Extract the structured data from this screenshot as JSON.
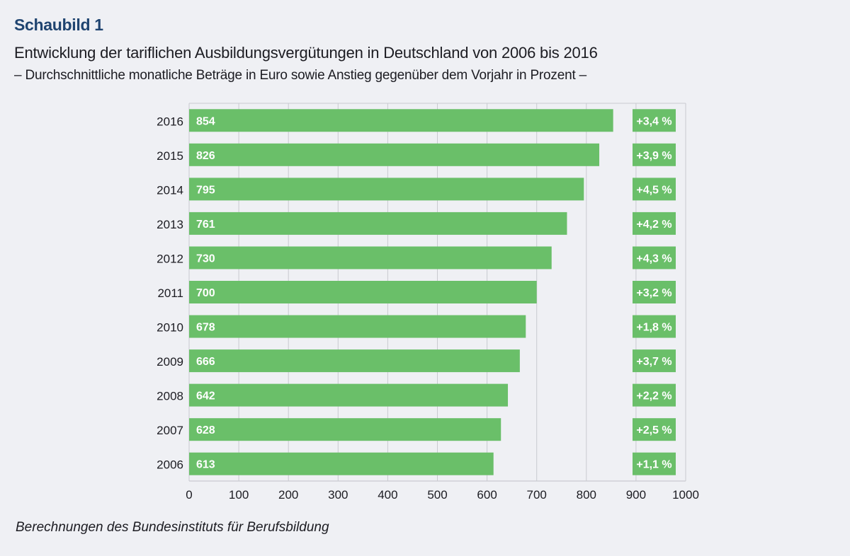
{
  "header": {
    "label": "Schaubild 1",
    "title": "Entwicklung der tariflichen Ausbildungsvergütungen in Deutschland von 2006 bis 2016",
    "subtitle": "– Durchschnittliche monatliche Beträge in Euro sowie Anstieg gegenüber dem Vorjahr in Prozent –"
  },
  "source": "Berechnungen des Bundesinstituts für Berufsbildung",
  "colors": {
    "bar": "#6abf69",
    "grid": "#c9cad0",
    "background": "#eff0f4",
    "header": "#1f4470"
  },
  "chart_data": {
    "type": "bar",
    "orientation": "horizontal",
    "title": "Entwicklung der tariflichen Ausbildungsvergütungen in Deutschland von 2006 bis 2016",
    "subtitle": "Durchschnittliche monatliche Beträge in Euro sowie Anstieg gegenüber dem Vorjahr in Prozent",
    "categories": [
      "2016",
      "2015",
      "2014",
      "2013",
      "2012",
      "2011",
      "2010",
      "2009",
      "2008",
      "2007",
      "2006"
    ],
    "values": [
      854,
      826,
      795,
      761,
      730,
      700,
      678,
      666,
      642,
      628,
      613
    ],
    "value_labels": [
      "854",
      "826",
      "795",
      "761",
      "730",
      "700",
      "678",
      "666",
      "642",
      "628",
      "613"
    ],
    "change_labels": [
      "+3,4 %",
      "+3,9 %",
      "+4,5 %",
      "+4,2 %",
      "+4,3 %",
      "+3,2 %",
      "+1,8 %",
      "+3,7 %",
      "+2,2 %",
      "+2,5 %",
      "+1,1 %"
    ],
    "change_values": [
      3.4,
      3.9,
      4.5,
      4.2,
      4.3,
      3.2,
      1.8,
      3.7,
      2.2,
      2.5,
      1.1
    ],
    "xlabel": "",
    "ylabel": "",
    "xlim": [
      0,
      1000
    ],
    "xticks": [
      0,
      100,
      200,
      300,
      400,
      500,
      600,
      700,
      800,
      900,
      1000
    ],
    "grid": true,
    "unit": "Euro"
  }
}
